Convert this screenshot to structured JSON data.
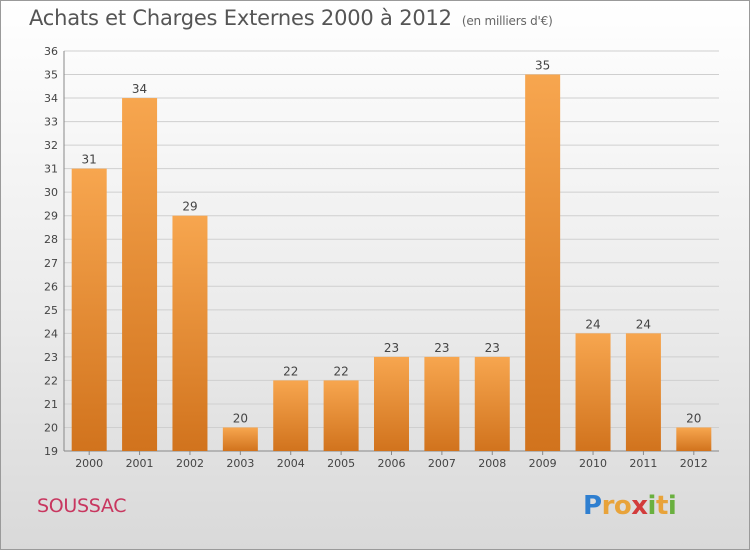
{
  "header": {
    "title": "Achats et Charges Externes 2000 à 2012",
    "unit": "(en milliers d'€)"
  },
  "footer": {
    "commune": "SOUSSAC",
    "logo_text": "Proxiti"
  },
  "colors": {
    "bar_top": "#f7a64f",
    "bar_bottom": "#d1731d",
    "grid": "#cfcfcf",
    "title": "#555555",
    "commune": "#c8365f"
  },
  "chart_data": {
    "type": "bar",
    "title": "Achats et Charges Externes 2000 à 2012",
    "subtitle": "(en milliers d'€)",
    "xlabel": "",
    "ylabel": "",
    "categories": [
      "2000",
      "2001",
      "2002",
      "2003",
      "2004",
      "2005",
      "2006",
      "2007",
      "2008",
      "2009",
      "2010",
      "2011",
      "2012"
    ],
    "values": [
      31,
      34,
      29,
      20,
      22,
      22,
      23,
      23,
      23,
      35,
      24,
      24,
      20
    ],
    "ylim": [
      19,
      36
    ],
    "yticks": [
      19,
      20,
      21,
      22,
      23,
      24,
      25,
      26,
      27,
      28,
      29,
      30,
      31,
      32,
      33,
      34,
      35,
      36
    ],
    "grid": true,
    "legend": "none"
  }
}
